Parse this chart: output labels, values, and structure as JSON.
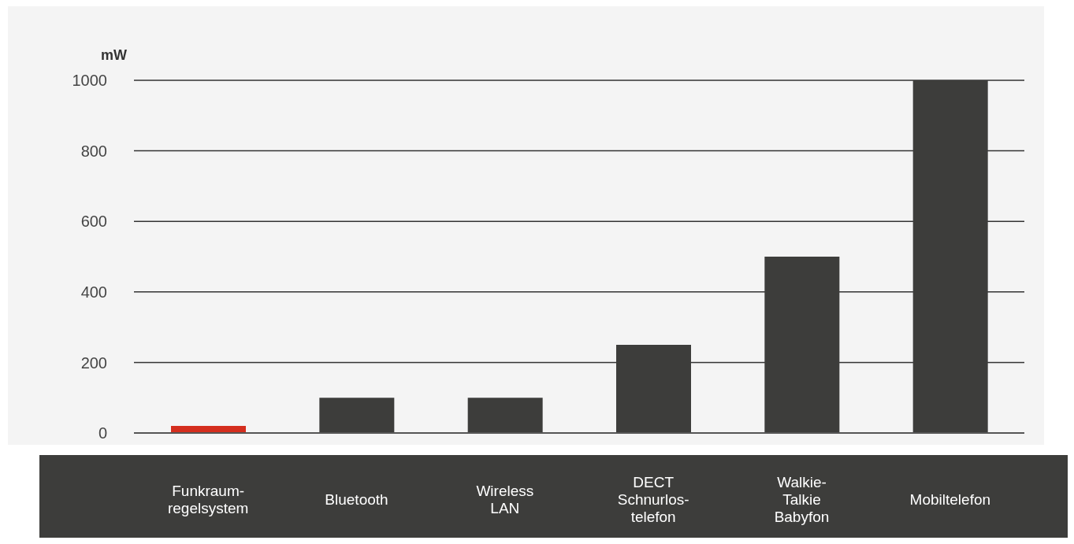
{
  "chart_data": {
    "type": "bar",
    "ylabel": "mW",
    "categories": [
      "Funkraum-\nregelsystem",
      "Bluetooth",
      "Wireless\nLAN",
      "DECT\nSchnurlos-\ntelefon",
      "Walkie-\nTalkie\nBabyfon",
      "Mobiltelefon"
    ],
    "values": [
      20,
      100,
      100,
      250,
      500,
      1000
    ],
    "colors": [
      "#d42e1e",
      "#3d3d3b",
      "#3d3d3b",
      "#3d3d3b",
      "#3d3d3b",
      "#3d3d3b"
    ],
    "ylim": [
      0,
      1000
    ],
    "yticks": [
      0,
      200,
      400,
      600,
      800,
      1000
    ],
    "grid": "y"
  }
}
